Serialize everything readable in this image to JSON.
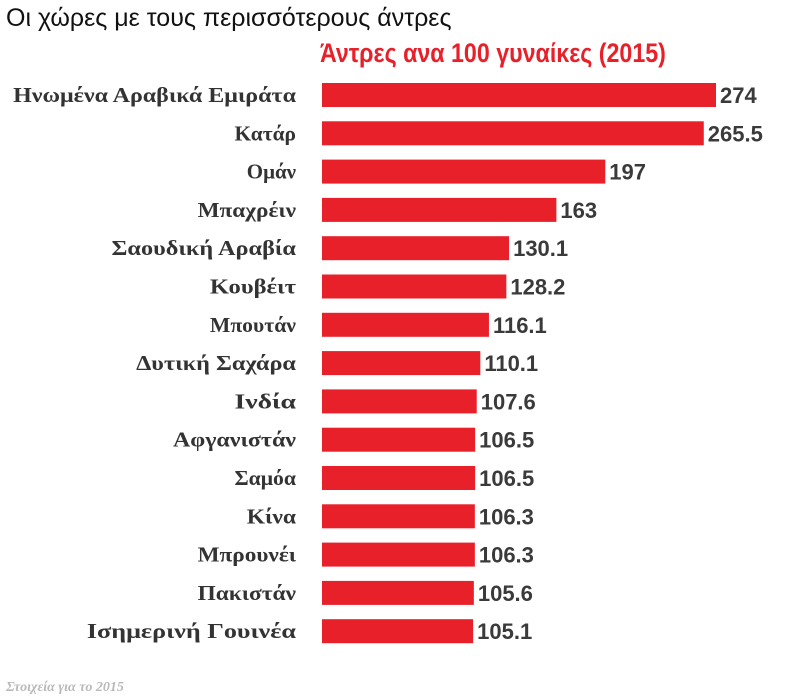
{
  "colors": {
    "bar": "#e8202a",
    "subtitle": "#e8202a",
    "label": "#333333",
    "value": "#3a3a3a",
    "footnote": "#b9b9b9"
  },
  "header": {
    "title": "Οι χώρες με τους περισσότερους άντρες",
    "footnote": "Στοιχεία για το 2015"
  },
  "chart_data": {
    "type": "bar",
    "orientation": "horizontal",
    "title": "Άντρες ανα 100 γυναίκες (2015)",
    "categories": [
      "Ηνωμένα Αραβικά Εμιράτα",
      "Κατάρ",
      "Ομάν",
      "Μπαχρέιν",
      "Σαουδική Αραβία",
      "Κουβέιτ",
      "Μπουτάν",
      "Δυτική Σαχάρα",
      "Ινδία",
      "Αφγανιστάν",
      "Σαμόα",
      "Κίνα",
      "Μπρουνέι",
      "Πακιστάν",
      "Ισημερινή Γουινέα"
    ],
    "values": [
      274,
      265.5,
      197,
      163,
      130.1,
      128.2,
      116.1,
      110.1,
      107.6,
      106.5,
      106.5,
      106.3,
      106.3,
      105.6,
      105.1
    ],
    "value_labels": [
      "274",
      "265.5",
      "197",
      "163",
      "130.1",
      "128.2",
      "116.1",
      "110.1",
      "107.6",
      "106.5",
      "106.5",
      "106.3",
      "106.3",
      "105.6",
      "105.1"
    ],
    "xlim": [
      0,
      274
    ],
    "grid": false,
    "legend": "none"
  }
}
